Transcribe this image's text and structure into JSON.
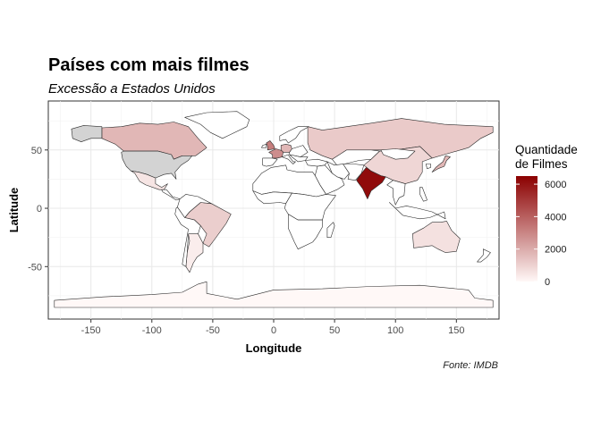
{
  "title": "Países com mais filmes",
  "subtitle": "Excessão a Estados Unidos",
  "caption": "Fonte: IMDB",
  "legend": {
    "title_line1": "Quantidade",
    "title_line2": "de Filmes",
    "breaks": [
      "6000",
      "4000",
      "2000",
      "0"
    ],
    "color_low": "#fff8f7",
    "color_high": "#8b0000"
  },
  "chart_data": {
    "type": "map",
    "xlabel": "Longitude",
    "ylabel": "Latitude",
    "xlim": [
      -185,
      185
    ],
    "ylim": [
      -95,
      92
    ],
    "x_ticks": [
      "-150",
      "-100",
      "-50",
      "0",
      "50",
      "100",
      "150"
    ],
    "y_ticks": [
      "50",
      "0",
      "-50"
    ],
    "grid": true,
    "excluded_country": "United States",
    "excluded_color": "#d3d3d3",
    "fill_scale_max": 6500,
    "countries": [
      {
        "name": "India",
        "value": 6200
      },
      {
        "name": "United Kingdom",
        "value": 3200
      },
      {
        "name": "France",
        "value": 2800
      },
      {
        "name": "Germany",
        "value": 1700
      },
      {
        "name": "Canada",
        "value": 1700
      },
      {
        "name": "Russia",
        "value": 1200
      },
      {
        "name": "Japan",
        "value": 1700
      },
      {
        "name": "Brazil",
        "value": 1100
      },
      {
        "name": "Australia",
        "value": 600
      },
      {
        "name": "China",
        "value": 900
      },
      {
        "name": "Mexico",
        "value": 500
      },
      {
        "name": "Argentina",
        "value": 300
      },
      {
        "name": "Antarctica",
        "value": 0
      }
    ]
  }
}
